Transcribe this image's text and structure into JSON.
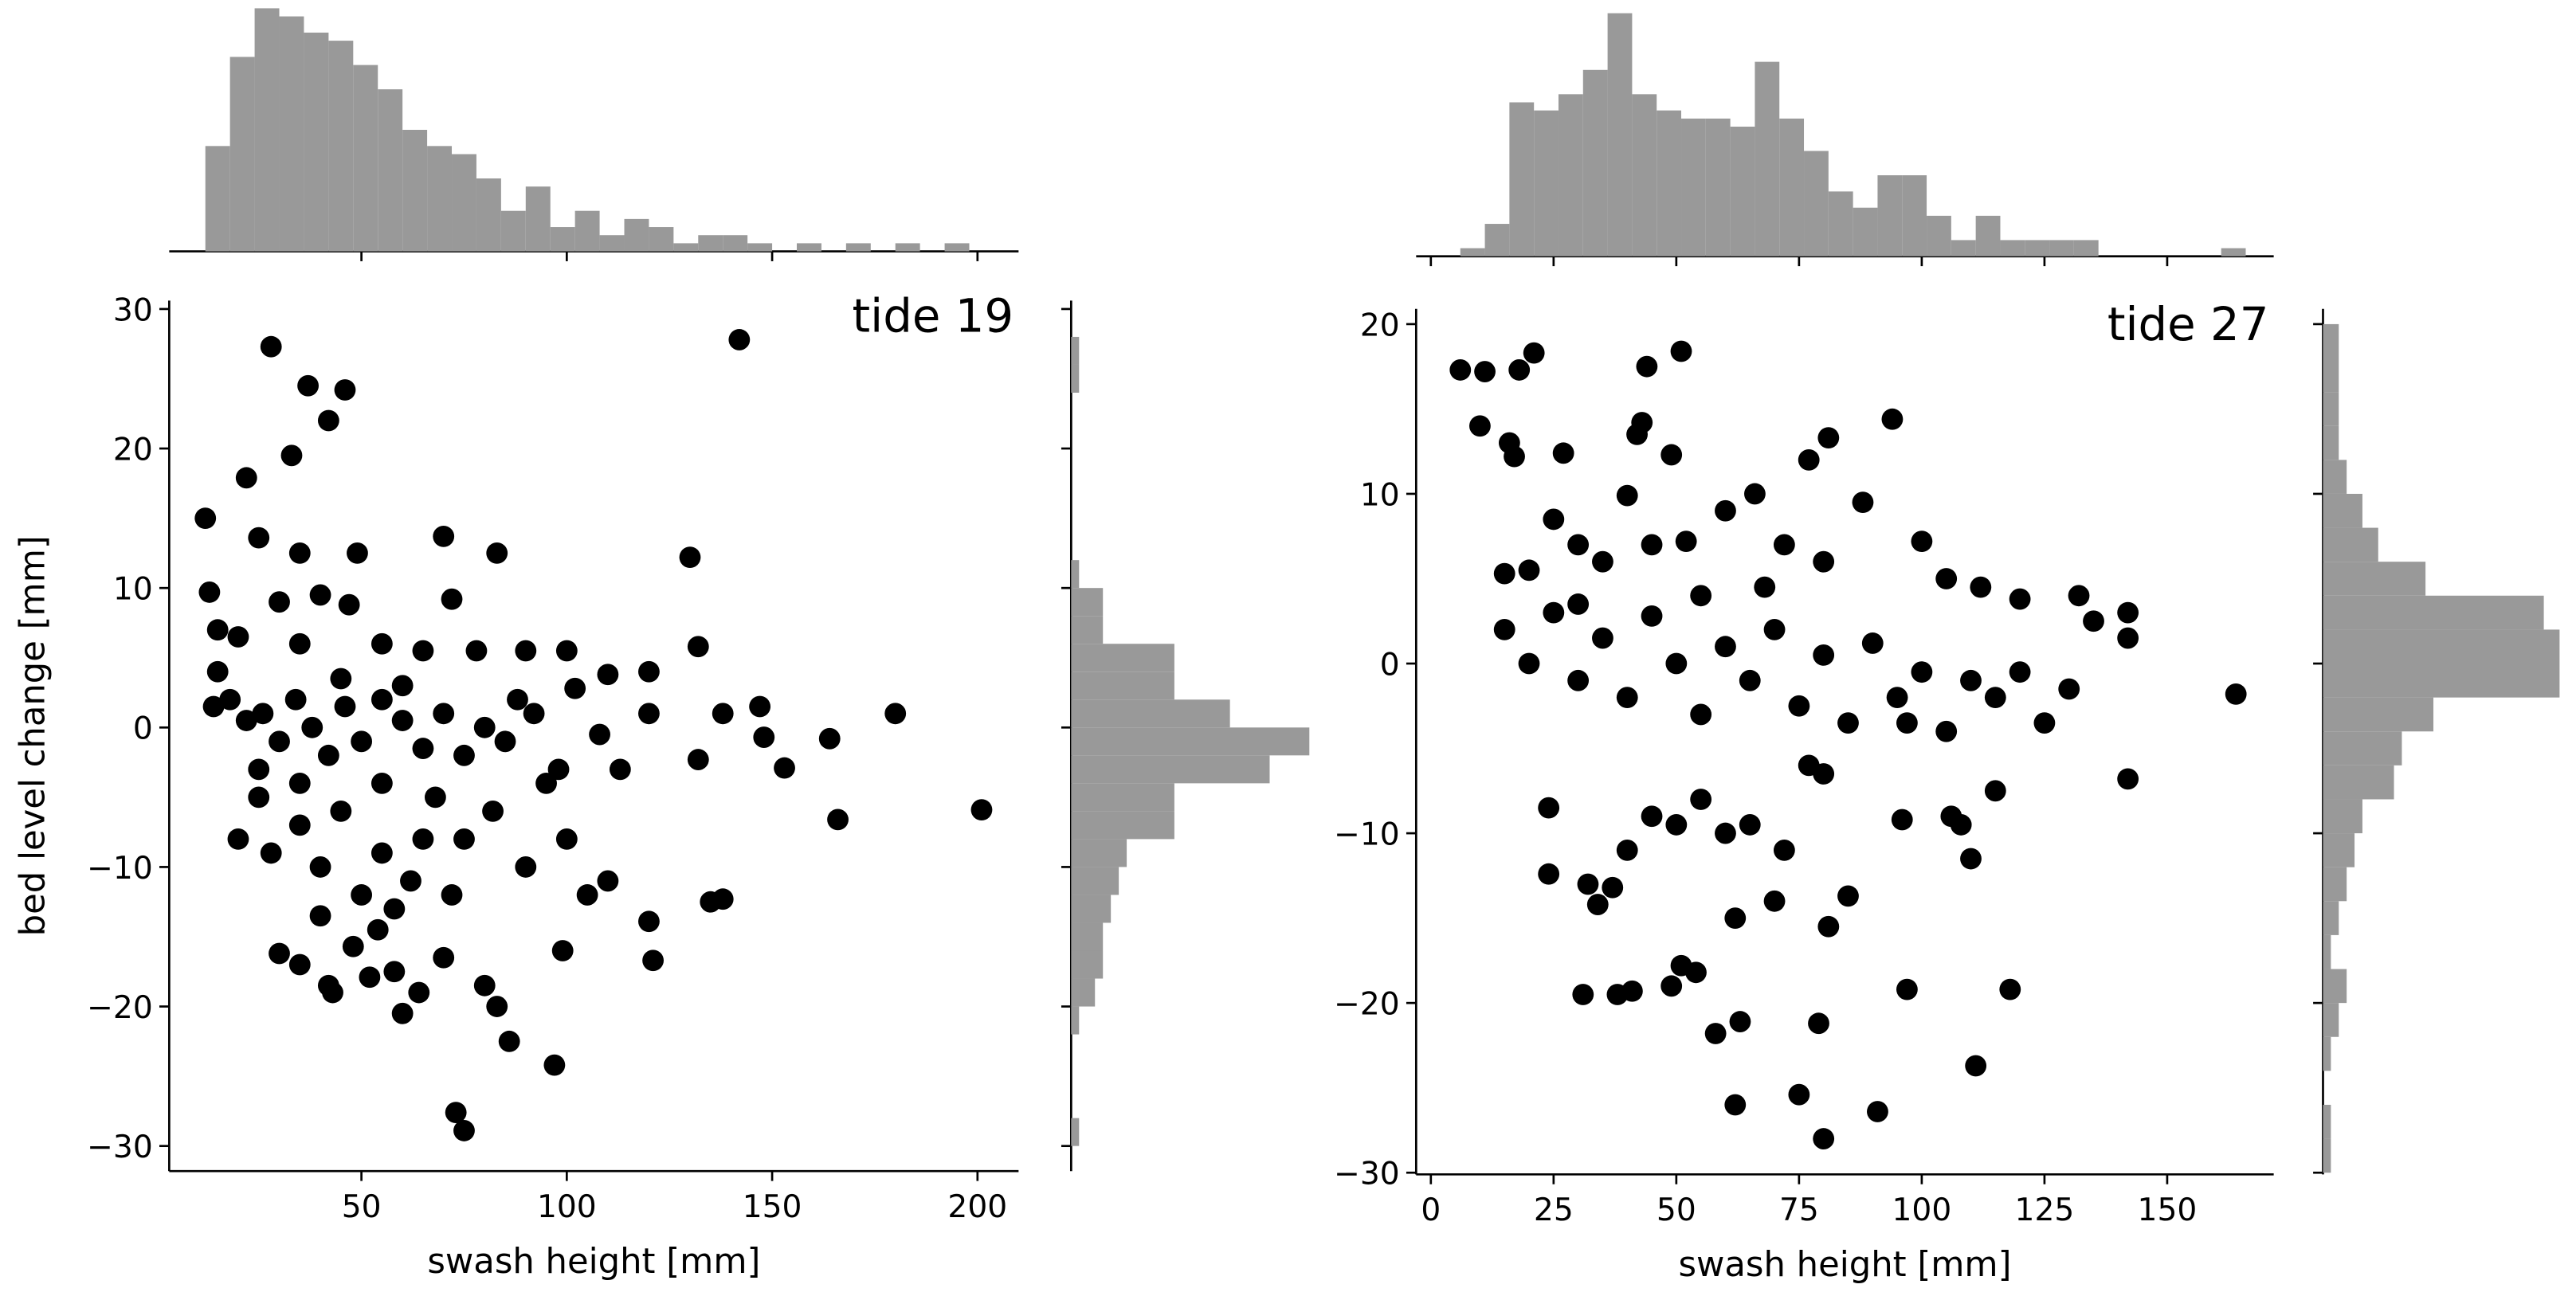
{
  "chart_data": [
    {
      "type": "scatter",
      "title": "tide 19",
      "x_label": "swash height [mm]",
      "y_label": "bed level change [mm]",
      "color": "#000000",
      "x": [
        28,
        37,
        46,
        42,
        33,
        22,
        142,
        12,
        25,
        35,
        49,
        70,
        83,
        130,
        13,
        15,
        30,
        40,
        47,
        72,
        20,
        35,
        55,
        65,
        78,
        90,
        100,
        110,
        120,
        132,
        14,
        18,
        22,
        26,
        30,
        34,
        38,
        42,
        46,
        50,
        55,
        60,
        65,
        70,
        75,
        80,
        85,
        92,
        98,
        102,
        108,
        113,
        120,
        138,
        147,
        148,
        153,
        164,
        180,
        201,
        166,
        132,
        20,
        25,
        28,
        35,
        40,
        45,
        50,
        55,
        62,
        68,
        75,
        82,
        90,
        95,
        100,
        105,
        110,
        120,
        121,
        135,
        138,
        30,
        35,
        42,
        48,
        52,
        58,
        64,
        70,
        60,
        80,
        83,
        86,
        97,
        99,
        73,
        75,
        43,
        54,
        40,
        58,
        15,
        60,
        45,
        88,
        55,
        35,
        25,
        65,
        72
      ],
      "y": [
        27.3,
        24.5,
        24.2,
        22,
        19.5,
        17.9,
        27.8,
        15,
        13.6,
        12.5,
        12.5,
        13.7,
        12.5,
        12.2,
        9.7,
        7,
        9,
        9.5,
        8.8,
        9.2,
        6.5,
        6,
        6,
        5.5,
        5.5,
        5.5,
        5.5,
        3.8,
        4,
        5.8,
        1.5,
        2,
        0.5,
        1,
        -1,
        2,
        0,
        -2,
        1.5,
        -1,
        2,
        0.5,
        -1.5,
        1,
        -2,
        0,
        -1,
        1,
        -3,
        2.8,
        -0.5,
        -3,
        1,
        1,
        1.5,
        -0.7,
        -2.9,
        -0.8,
        1,
        -5.9,
        -6.6,
        -2.3,
        -8,
        -5,
        -9,
        -7,
        -10,
        -6,
        -12,
        -9,
        -11,
        -5,
        -8,
        -6,
        -10,
        -4,
        -8,
        -12,
        -11,
        -13.9,
        -16.7,
        -12.5,
        -12.3,
        -16.2,
        -17,
        -18.5,
        -15.7,
        -17.9,
        -17.5,
        -19,
        -16.5,
        -20.5,
        -18.5,
        -20,
        -22.5,
        -24.2,
        -16,
        -27.6,
        -28.9,
        -19,
        -14.5,
        -13.5,
        -13,
        4,
        3,
        3.5,
        2,
        -4,
        -4,
        -3,
        -8,
        -12
      ],
      "xlim": [
        3.2,
        210
      ],
      "ylim": [
        -31.8,
        30.6
      ],
      "xticks": [
        50,
        100,
        150,
        200
      ],
      "yticks": [
        {
          "value": -30,
          "label": "−30"
        },
        {
          "value": -20,
          "label": "−20"
        },
        {
          "value": -10,
          "label": "−10"
        },
        0,
        10,
        20,
        30
      ],
      "x_hist": {
        "color": "#999999",
        "bins": [
          12,
          18,
          24,
          30,
          36,
          42,
          48,
          54,
          60,
          66,
          72,
          78,
          84,
          90,
          96,
          102,
          108,
          114,
          120,
          126,
          132,
          138,
          144,
          150,
          156,
          162,
          168,
          174,
          180,
          186,
          192,
          198,
          204
        ],
        "counts": [
          13,
          24,
          30,
          29,
          27,
          26,
          23,
          20,
          15,
          13,
          12,
          9,
          5,
          8,
          3,
          5,
          2,
          4,
          3,
          1,
          2,
          2,
          1,
          0,
          1,
          0,
          1,
          0,
          1,
          0,
          1,
          0
        ]
      },
      "y_hist": {
        "color": "#999999",
        "bins": [
          -30,
          -28,
          -26,
          -24,
          -22,
          -20,
          -18,
          -16,
          -14,
          -12,
          -10,
          -8,
          -6,
          -4,
          -2,
          0,
          2,
          4,
          6,
          8,
          10,
          12,
          14,
          16,
          18,
          20,
          22,
          24,
          26,
          28
        ],
        "counts": [
          1,
          0,
          0,
          0,
          1,
          3,
          4,
          4,
          5,
          6,
          7,
          13,
          13,
          25,
          30,
          20,
          13,
          13,
          4,
          4,
          1,
          0,
          0,
          0,
          0,
          0,
          0,
          1,
          1
        ]
      }
    },
    {
      "type": "scatter",
      "title": "tide 27",
      "x_label": "swash height [mm]",
      "color": "#000000",
      "x": [
        6,
        11,
        18,
        21,
        10,
        16,
        17,
        27,
        42,
        44,
        51,
        49,
        43,
        77,
        81,
        94,
        15,
        20,
        25,
        30,
        35,
        40,
        45,
        52,
        60,
        66,
        72,
        80,
        88,
        100,
        105,
        112,
        120,
        132,
        135,
        142,
        142,
        164,
        15,
        20,
        25,
        30,
        35,
        40,
        45,
        50,
        55,
        60,
        65,
        70,
        75,
        80,
        85,
        90,
        95,
        100,
        105,
        110,
        115,
        120,
        125,
        130,
        24,
        24,
        32,
        34,
        37,
        40,
        45,
        50,
        55,
        60,
        65,
        70,
        72,
        77,
        80,
        85,
        81,
        62,
        96,
        106,
        110,
        108,
        142,
        115,
        31,
        38,
        41,
        49,
        51,
        54,
        58,
        63,
        62,
        75,
        79,
        80,
        91,
        97,
        111,
        118,
        97,
        30,
        55,
        68
      ],
      "y": [
        17.3,
        17.2,
        17.3,
        18.3,
        14,
        13,
        12.2,
        12.4,
        13.5,
        17.5,
        18.4,
        12.3,
        14.2,
        12,
        13.3,
        14.4,
        5.3,
        5.5,
        8.5,
        7,
        6,
        9.9,
        7,
        7.2,
        9,
        10,
        7,
        6,
        9.5,
        7.2,
        5,
        4.5,
        3.8,
        4,
        2.5,
        3,
        1.5,
        -1.8,
        2,
        0,
        3,
        -1,
        1.5,
        -2,
        2.8,
        0,
        -3,
        1,
        -1,
        2,
        -2.5,
        0.5,
        -3.5,
        1.2,
        -2,
        -0.5,
        -4,
        -1,
        -2,
        -0.5,
        -3.5,
        -1.5,
        -8.5,
        -12.4,
        -13,
        -14.2,
        -13.2,
        -11,
        -9,
        -9.5,
        -8,
        -10,
        -9.5,
        -14,
        -11,
        -6,
        -6.5,
        -13.7,
        -15.5,
        -15,
        -9.2,
        -9,
        -11.5,
        -9.5,
        -6.8,
        -7.5,
        -19.5,
        -19.5,
        -19.3,
        -19,
        -17.8,
        -18.2,
        -21.8,
        -21.1,
        -26,
        -25.4,
        -21.2,
        -28,
        -26.4,
        -19.2,
        -23.7,
        -19.2,
        -3.5,
        3.5,
        4,
        4.5
      ],
      "xlim": [
        -3,
        171.7
      ],
      "ylim": [
        -30.1,
        20.9
      ],
      "xticks": [
        0,
        25,
        50,
        75,
        100,
        125,
        150
      ],
      "yticks": [
        {
          "value": -30,
          "label": "−30"
        },
        {
          "value": -20,
          "label": "−20"
        },
        {
          "value": -10,
          "label": "−10"
        },
        0,
        10,
        20
      ],
      "x_hist": {
        "color": "#999999",
        "bins": [
          6,
          11,
          16,
          21,
          26,
          31,
          36,
          41,
          46,
          51,
          56,
          61,
          66,
          71,
          76,
          81,
          86,
          91,
          96,
          101,
          106,
          111,
          116,
          121,
          126,
          131,
          136,
          141,
          146,
          151,
          156,
          161,
          166
        ],
        "counts": [
          1,
          4,
          19,
          18,
          20,
          23,
          30,
          20,
          18,
          17,
          17,
          16,
          24,
          17,
          13,
          8,
          6,
          10,
          10,
          5,
          2,
          5,
          2,
          2,
          2,
          2,
          0,
          0,
          0,
          0,
          0,
          1
        ]
      },
      "y_hist": {
        "color": "#999999",
        "bins": [
          -30,
          -28,
          -26,
          -24,
          -22,
          -20,
          -18,
          -16,
          -14,
          -12,
          -10,
          -8,
          -6,
          -4,
          -2,
          0,
          2,
          4,
          6,
          8,
          10,
          12,
          14,
          16,
          18,
          20
        ],
        "counts": [
          1,
          1,
          0,
          1,
          2,
          3,
          1,
          2,
          3,
          4,
          5,
          9,
          10,
          14,
          30,
          30,
          28,
          13,
          7,
          5,
          3,
          2,
          2,
          2,
          2
        ]
      }
    }
  ]
}
